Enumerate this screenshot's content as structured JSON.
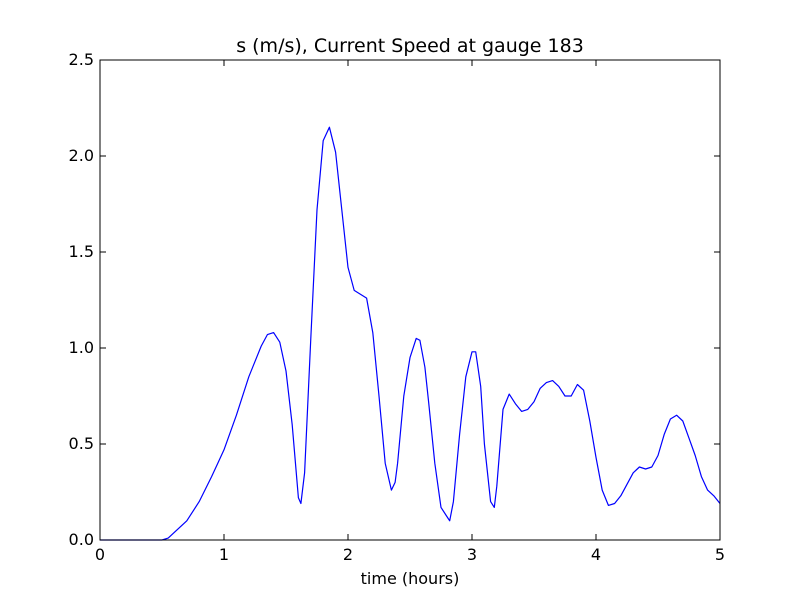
{
  "chart_data": {
    "type": "line",
    "title": "s (m/s), Current Speed at gauge 183",
    "xlabel": "time (hours)",
    "ylabel": "",
    "xlim": [
      0,
      5
    ],
    "ylim": [
      0,
      2.5
    ],
    "xticks": [
      0,
      1,
      2,
      3,
      4,
      5
    ],
    "xtick_labels": [
      "0",
      "1",
      "2",
      "3",
      "4",
      "5"
    ],
    "yticks": [
      0,
      0.5,
      1.0,
      1.5,
      2.0,
      2.5
    ],
    "ytick_labels": [
      "0.0",
      "0.5",
      "1.0",
      "1.5",
      "2.0",
      "2.5"
    ],
    "grid": false,
    "series": [
      {
        "color": "#0000ff",
        "style": "solid",
        "x": [
          0,
          0.5,
          0.55,
          0.6,
          0.7,
          0.8,
          0.9,
          0.95,
          1.0,
          1.1,
          1.2,
          1.3,
          1.35,
          1.4,
          1.45,
          1.5,
          1.55,
          1.6,
          1.62,
          1.65,
          1.7,
          1.75,
          1.8,
          1.85,
          1.9,
          1.95,
          2.0,
          2.05,
          2.1,
          2.15,
          2.2,
          2.25,
          2.3,
          2.35,
          2.38,
          2.4,
          2.45,
          2.5,
          2.55,
          2.58,
          2.62,
          2.65,
          2.7,
          2.75,
          2.8,
          2.82,
          2.85,
          2.9,
          2.95,
          3.0,
          3.03,
          3.07,
          3.1,
          3.15,
          3.18,
          3.2,
          3.25,
          3.3,
          3.35,
          3.4,
          3.45,
          3.5,
          3.55,
          3.6,
          3.65,
          3.7,
          3.75,
          3.8,
          3.85,
          3.9,
          3.95,
          4.0,
          4.05,
          4.1,
          4.15,
          4.2,
          4.25,
          4.3,
          4.35,
          4.4,
          4.45,
          4.5,
          4.55,
          4.6,
          4.65,
          4.7,
          4.75,
          4.8,
          4.85,
          4.9,
          4.95,
          5.0
        ],
        "y": [
          0,
          0,
          0.01,
          0.04,
          0.1,
          0.2,
          0.33,
          0.4,
          0.47,
          0.65,
          0.85,
          1.01,
          1.07,
          1.08,
          1.03,
          0.88,
          0.6,
          0.22,
          0.19,
          0.35,
          1.05,
          1.72,
          2.08,
          2.15,
          2.02,
          1.72,
          1.42,
          1.3,
          1.28,
          1.26,
          1.08,
          0.75,
          0.4,
          0.26,
          0.3,
          0.4,
          0.75,
          0.95,
          1.05,
          1.04,
          0.9,
          0.72,
          0.4,
          0.17,
          0.12,
          0.1,
          0.2,
          0.55,
          0.85,
          0.98,
          0.98,
          0.8,
          0.5,
          0.2,
          0.17,
          0.28,
          0.68,
          0.76,
          0.71,
          0.67,
          0.68,
          0.72,
          0.79,
          0.82,
          0.83,
          0.8,
          0.75,
          0.75,
          0.81,
          0.78,
          0.62,
          0.43,
          0.26,
          0.18,
          0.19,
          0.23,
          0.29,
          0.35,
          0.38,
          0.37,
          0.38,
          0.44,
          0.55,
          0.63,
          0.65,
          0.62,
          0.53,
          0.44,
          0.33,
          0.26,
          0.23,
          0.19
        ]
      },
      {
        "color": "#000000",
        "style": "dashed",
        "x": [
          0,
          5
        ],
        "y": [
          0,
          0
        ]
      }
    ]
  }
}
